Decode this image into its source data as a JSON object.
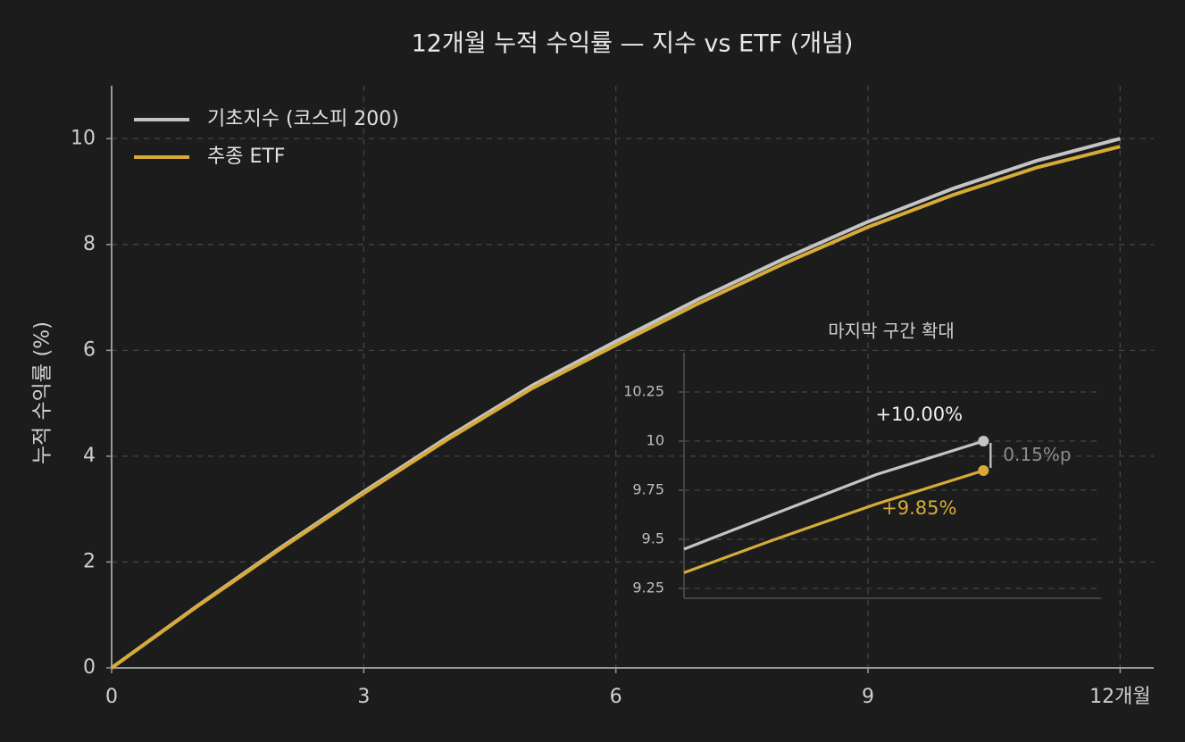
{
  "chart_data": [
    {
      "type": "line",
      "title": "12개월 누적 수익률 — 지수 vs ETF (개념)",
      "y_label": "누적 수익률 (%)",
      "x": [
        0,
        1,
        2,
        3,
        4,
        5,
        6,
        7,
        8,
        9,
        10,
        11,
        12
      ],
      "series": [
        {
          "name": "기초지수 (코스피 200)",
          "color": "#c4c4c4",
          "values": [
            0,
            1.15,
            2.26,
            3.33,
            4.36,
            5.33,
            6.17,
            6.98,
            7.73,
            8.43,
            9.05,
            9.58,
            10.0
          ]
        },
        {
          "name": "추종 ETF",
          "color": "#d6ab38",
          "values": [
            0,
            1.14,
            2.24,
            3.3,
            4.32,
            5.28,
            6.1,
            6.9,
            7.64,
            8.33,
            8.93,
            9.45,
            9.85
          ]
        }
      ],
      "xlim": [
        0,
        12.4
      ],
      "ylim": [
        0,
        11
      ],
      "xticks": [
        0,
        3,
        6,
        9,
        {
          "value": 12,
          "label": "12개월"
        }
      ],
      "yticks": [
        0,
        2,
        4,
        6,
        8,
        10
      ],
      "grid": true,
      "legend": "upper-left"
    },
    {
      "type": "line",
      "title": "마지막 구간 확대",
      "x": [
        10.6,
        11,
        11.5,
        12
      ],
      "series": [
        {
          "name": "기초지수 (코스피 200)",
          "color": "#c4c4c4",
          "values": [
            9.45,
            9.62,
            9.83,
            10.0
          ],
          "value_labels": [
            null,
            null,
            null,
            "+10.00%"
          ]
        },
        {
          "name": "추종 ETF",
          "color": "#d6ab38",
          "values": [
            9.33,
            9.49,
            9.68,
            9.85
          ],
          "value_labels": [
            null,
            null,
            null,
            "+9.85%"
          ]
        }
      ],
      "annotations": [
        {
          "text": "0.15%p",
          "value": 0.15
        }
      ],
      "xlim": [
        10.6,
        12.55
      ],
      "ylim": [
        9.2,
        10.45
      ],
      "yticks": [
        9.25,
        9.5,
        9.75,
        10.0,
        10.25
      ],
      "grid": true
    }
  ]
}
